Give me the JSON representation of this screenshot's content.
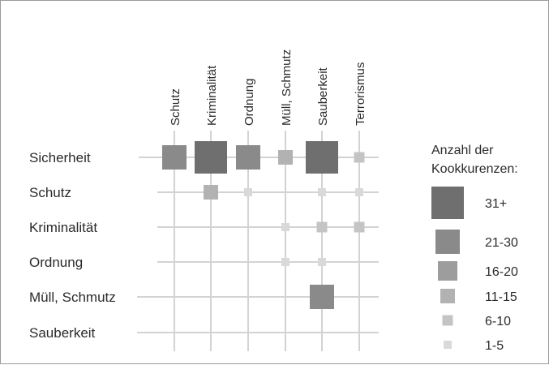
{
  "chart_data": {
    "type": "heatmap",
    "columns": [
      "Schutz",
      "Kriminalität",
      "Ordnung",
      "Müll, Schmutz",
      "Sauberkeit",
      "Terrorismus"
    ],
    "rows": [
      "Sicherheit",
      "Schutz",
      "Kriminalität",
      "Ordnung",
      "Müll, Schmutz",
      "Sauberkeit"
    ],
    "cells": [
      {
        "row": "Sicherheit",
        "col": "Schutz",
        "bin": "21-30"
      },
      {
        "row": "Sicherheit",
        "col": "Kriminalität",
        "bin": "31+"
      },
      {
        "row": "Sicherheit",
        "col": "Ordnung",
        "bin": "21-30"
      },
      {
        "row": "Sicherheit",
        "col": "Müll, Schmutz",
        "bin": "11-15"
      },
      {
        "row": "Sicherheit",
        "col": "Sauberkeit",
        "bin": "31+"
      },
      {
        "row": "Sicherheit",
        "col": "Terrorismus",
        "bin": "6-10"
      },
      {
        "row": "Schutz",
        "col": "Kriminalität",
        "bin": "11-15"
      },
      {
        "row": "Schutz",
        "col": "Ordnung",
        "bin": "1-5"
      },
      {
        "row": "Schutz",
        "col": "Sauberkeit",
        "bin": "1-5"
      },
      {
        "row": "Schutz",
        "col": "Terrorismus",
        "bin": "1-5"
      },
      {
        "row": "Kriminalität",
        "col": "Müll, Schmutz",
        "bin": "1-5"
      },
      {
        "row": "Kriminalität",
        "col": "Sauberkeit",
        "bin": "6-10"
      },
      {
        "row": "Kriminalität",
        "col": "Terrorismus",
        "bin": "6-10"
      },
      {
        "row": "Ordnung",
        "col": "Müll, Schmutz",
        "bin": "1-5"
      },
      {
        "row": "Ordnung",
        "col": "Sauberkeit",
        "bin": "1-5"
      },
      {
        "row": "Müll, Schmutz",
        "col": "Sauberkeit",
        "bin": "21-30"
      }
    ],
    "legend": {
      "title_line1": "Anzahl der",
      "title_line2": "Kookkurenzen:",
      "placement": "right",
      "bins": [
        {
          "label": "31+",
          "color": "#6f6f6f"
        },
        {
          "label": "21-30",
          "color": "#8a8a8a"
        },
        {
          "label": "16-20",
          "color": "#9d9d9d"
        },
        {
          "label": "11-15",
          "color": "#b2b2b2"
        },
        {
          "label": "6-10",
          "color": "#c4c4c4"
        },
        {
          "label": "1-5",
          "color": "#d9d9d9"
        }
      ]
    },
    "grid": true,
    "grid_color": "#d3d3d3"
  }
}
